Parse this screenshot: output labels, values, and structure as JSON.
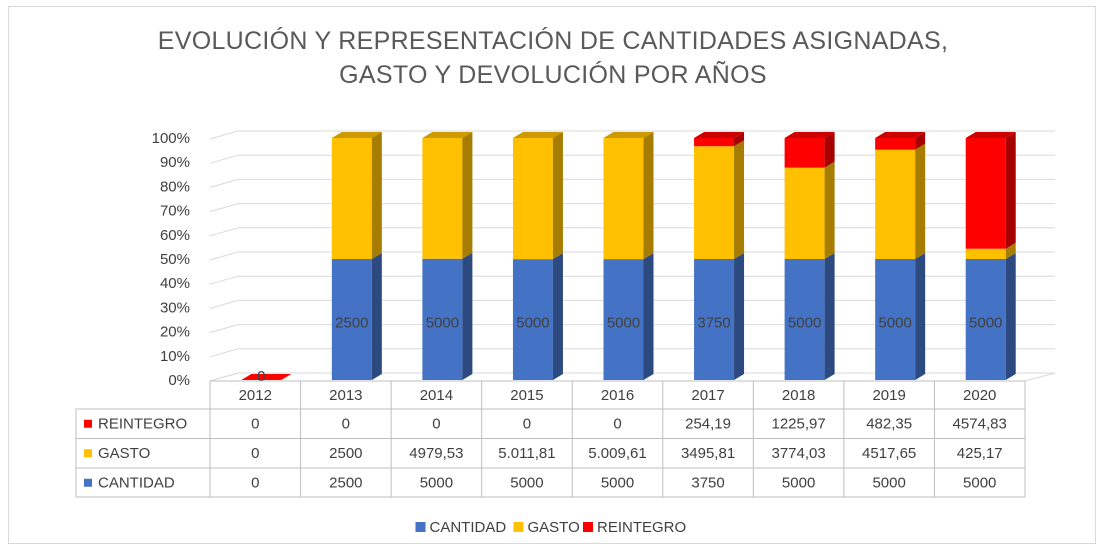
{
  "chart_data": {
    "type": "bar",
    "stacking": "percent",
    "three_d": true,
    "title": "EVOLUCIÓN Y REPRESENTACIÓN DE CANTIDADES ASIGNADAS, GASTO Y DEVOLUCIÓN POR AÑOS",
    "categories": [
      "2012",
      "2013",
      "2014",
      "2015",
      "2016",
      "2017",
      "2018",
      "2019",
      "2020"
    ],
    "series": [
      {
        "name": "CANTIDAD",
        "color": "#4472c4",
        "values": [
          0,
          2500,
          5000,
          5000,
          5000,
          3750,
          5000,
          5000,
          5000
        ]
      },
      {
        "name": "GASTO",
        "color": "#ffc000",
        "values": [
          0,
          2500,
          4979.53,
          5011.81,
          5009.61,
          3495.81,
          3774.03,
          4517.65,
          425.17
        ],
        "value_labels": [
          "0",
          "2500",
          "4979,53",
          "5.011,81",
          "5.009,61",
          "3495,81",
          "3774,03",
          "4517,65",
          "425,17"
        ]
      },
      {
        "name": "REINTEGRO",
        "color": "#ff0000",
        "values": [
          0,
          0,
          0,
          0,
          0,
          254.19,
          1225.97,
          482.35,
          4574.83
        ],
        "value_labels": [
          "0",
          "0",
          "0",
          "0",
          "0",
          "254,19",
          "1225,97",
          "482,35",
          "4574,83"
        ]
      }
    ],
    "data_labels_series": 0,
    "ylim": [
      0,
      100
    ],
    "yticks": [
      {
        "value": 0,
        "label": "0%"
      },
      {
        "value": 10,
        "label": "10%"
      },
      {
        "value": 20,
        "label": "20%"
      },
      {
        "value": 30,
        "label": "30%"
      },
      {
        "value": 40,
        "label": "40%"
      },
      {
        "value": 50,
        "label": "50%"
      },
      {
        "value": 60,
        "label": "60%"
      },
      {
        "value": 70,
        "label": "70%"
      },
      {
        "value": 80,
        "label": "80%"
      },
      {
        "value": 90,
        "label": "90%"
      },
      {
        "value": 100,
        "label": "100%"
      }
    ],
    "grid": true,
    "data_table": true,
    "legend": "bottom"
  }
}
